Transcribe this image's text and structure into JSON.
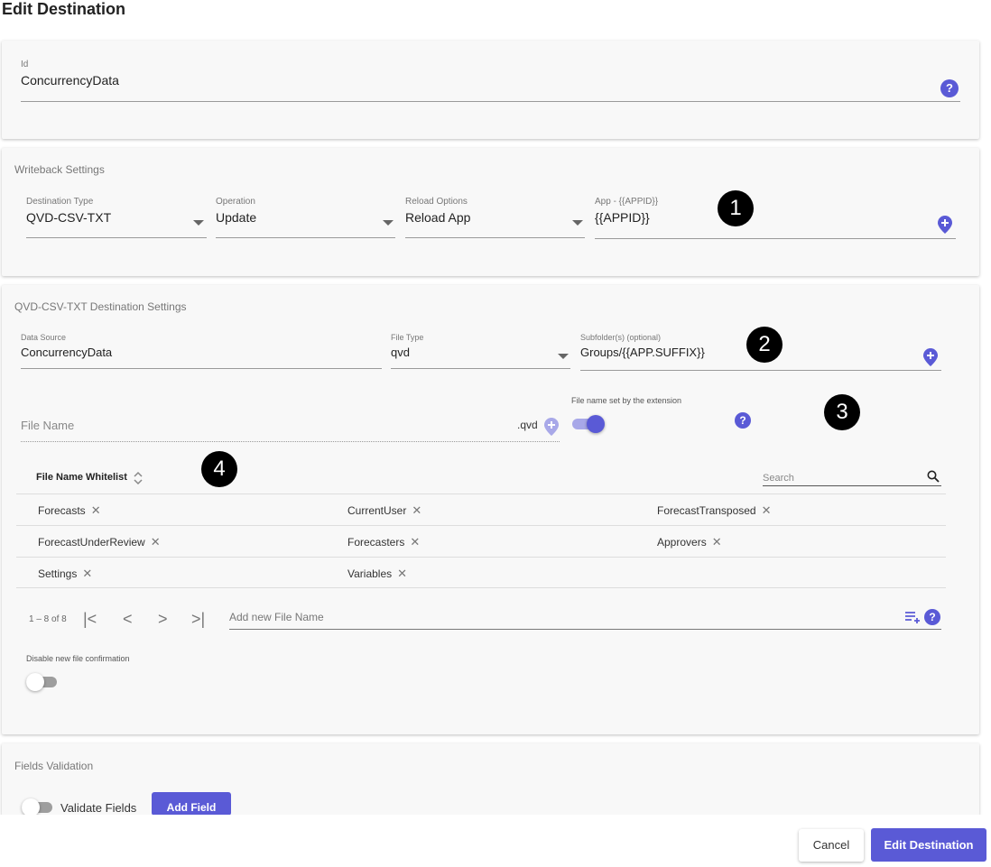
{
  "page_title": "Edit Destination",
  "id_section": {
    "label": "Id",
    "value": "ConcurrencyData",
    "help_icon": "?"
  },
  "writeback": {
    "title": "Writeback Settings",
    "destination_type": {
      "label": "Destination Type",
      "value": "QVD-CSV-TXT"
    },
    "operation": {
      "label": "Operation",
      "value": "Update"
    },
    "reload_options": {
      "label": "Reload Options",
      "value": "Reload App"
    },
    "app": {
      "label": "App - {{APPID}}",
      "value": "{{APPID}}"
    },
    "badge": "1"
  },
  "destination": {
    "title": "QVD-CSV-TXT Destination Settings",
    "data_source": {
      "label": "Data Source",
      "value": "ConcurrencyData"
    },
    "file_type": {
      "label": "File Type",
      "value": "qvd"
    },
    "subfolder": {
      "label": "Subfolder(s) (optional)",
      "value": "Groups/{{APP.SUFFIX}}"
    },
    "badge_2": "2",
    "file_name": {
      "placeholder": "File Name",
      "extension": ".qvd"
    },
    "file_name_set": {
      "label": "File name set by the extension",
      "on": true
    },
    "badge_3": "3",
    "help_icon": "?",
    "whitelist": {
      "header": "File Name Whitelist",
      "badge": "4",
      "search_placeholder": "Search",
      "rows": [
        [
          "Forecasts",
          "CurrentUser",
          "ForecastTransposed"
        ],
        [
          "ForecastUnderReview",
          "Forecasters",
          "Approvers"
        ],
        [
          "Settings",
          "Variables",
          ""
        ]
      ],
      "remove_glyph": "✕",
      "pagination": "1 – 8 of 8",
      "first_glyph": "|<",
      "prev_glyph": "<",
      "next_glyph": ">",
      "last_glyph": ">|",
      "add_placeholder": "Add new File Name"
    },
    "disable_confirmation": {
      "label": "Disable new file confirmation",
      "on": false
    }
  },
  "fields_validation": {
    "title": "Fields Validation",
    "validate_label": "Validate Fields",
    "add_field_label": "Add Field"
  },
  "footer": {
    "cancel_label": "Cancel",
    "submit_label": "Edit Destination"
  },
  "colors": {
    "accent": "#5a5ad6",
    "badge": "#000000",
    "card_bg": "#f8f8f8"
  }
}
